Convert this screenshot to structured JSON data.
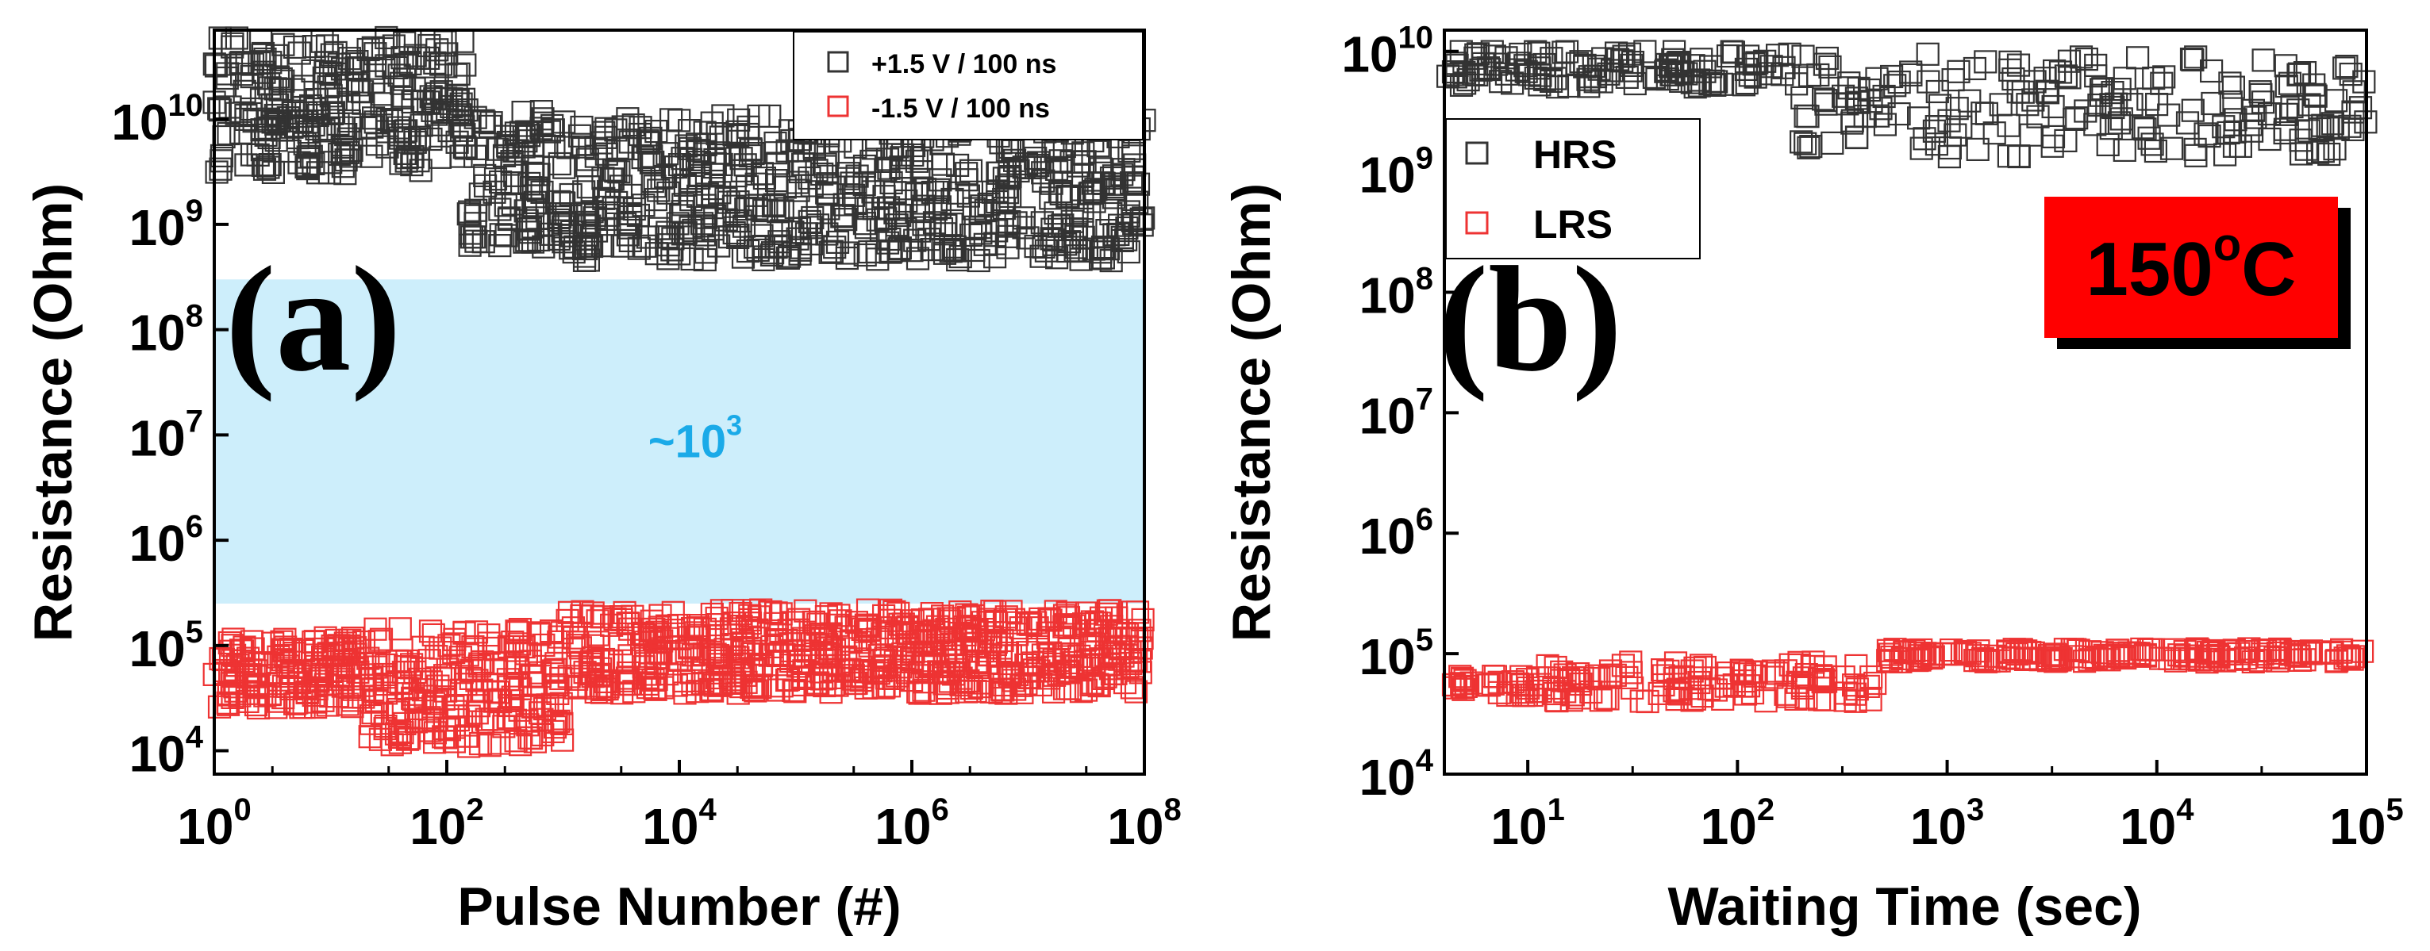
{
  "chart_data": [
    {
      "panel": "a",
      "type": "scatter",
      "panel_label": "(a)",
      "xlabel": "Pulse Number (#)",
      "ylabel": "Resistance (Ohm)",
      "xscale": "log",
      "yscale": "log",
      "xlim": [
        1,
        100000000
      ],
      "ylim": [
        6000,
        70000000000
      ],
      "xticks": [
        {
          "value": 1,
          "base": "10",
          "exp": "0"
        },
        {
          "value": 100,
          "base": "10",
          "exp": "2"
        },
        {
          "value": 10000,
          "base": "10",
          "exp": "4"
        },
        {
          "value": 1000000,
          "base": "10",
          "exp": "6"
        },
        {
          "value": 100000000,
          "base": "10",
          "exp": "8"
        }
      ],
      "yticks": [
        {
          "value": 10000,
          "base": "10",
          "exp": "4"
        },
        {
          "value": 100000,
          "base": "10",
          "exp": "5"
        },
        {
          "value": 1000000,
          "base": "10",
          "exp": "6"
        },
        {
          "value": 10000000,
          "base": "10",
          "exp": "7"
        },
        {
          "value": 100000000,
          "base": "10",
          "exp": "8"
        },
        {
          "value": 1000000000,
          "base": "10",
          "exp": "9"
        },
        {
          "value": 10000000000,
          "base": "10",
          "exp": "10"
        }
      ],
      "band": {
        "y_low": 250000,
        "y_high": 300000000,
        "color": "#cdeefb",
        "label_base": "~10",
        "label_exp": "3",
        "label_color": "#1aaae8"
      },
      "legend_position": "top-right",
      "series": [
        {
          "name": "+1.5 V / 100 ns",
          "color": "#333333",
          "x_range": [
            1,
            100000000
          ],
          "segments": [
            {
              "x": [
                1,
                150
              ],
              "y": [
                3000000000,
                60000000000
              ]
            },
            {
              "x": [
                150,
                1000
              ],
              "y": [
                600000000,
                12000000000
              ]
            },
            {
              "x": [
                1000,
                100000000
              ],
              "y": [
                450000000,
                11000000000
              ]
            }
          ]
        },
        {
          "name": "-1.5 V / 100 ns",
          "color": "#ee3333",
          "x_range": [
            1,
            100000000
          ],
          "segments": [
            {
              "x": [
                1,
                20
              ],
              "y": [
                25000,
                120000
              ]
            },
            {
              "x": [
                20,
                1000
              ],
              "y": [
                11000,
                150000
              ]
            },
            {
              "x": [
                1000,
                100000000
              ],
              "y": [
                35000,
                220000
              ]
            }
          ]
        }
      ]
    },
    {
      "panel": "b",
      "type": "scatter",
      "panel_label": "(b)",
      "xlabel": "Waiting Time (sec)",
      "ylabel": "Resistance (Ohm)",
      "xscale": "log",
      "yscale": "log",
      "xlim": [
        4,
        100000
      ],
      "ylim": [
        10000,
        15000000000
      ],
      "xticks": [
        {
          "value": 10,
          "base": "10",
          "exp": "1"
        },
        {
          "value": 100,
          "base": "10",
          "exp": "2"
        },
        {
          "value": 1000,
          "base": "10",
          "exp": "3"
        },
        {
          "value": 10000,
          "base": "10",
          "exp": "4"
        },
        {
          "value": 100000,
          "base": "10",
          "exp": "5"
        }
      ],
      "yticks": [
        {
          "value": 10000,
          "base": "10",
          "exp": "4"
        },
        {
          "value": 100000,
          "base": "10",
          "exp": "5"
        },
        {
          "value": 1000000,
          "base": "10",
          "exp": "6"
        },
        {
          "value": 10000000,
          "base": "10",
          "exp": "7"
        },
        {
          "value": 100000000,
          "base": "10",
          "exp": "8"
        },
        {
          "value": 1000000000,
          "base": "10",
          "exp": "9"
        },
        {
          "value": 10000000000,
          "base": "10",
          "exp": "10"
        }
      ],
      "annotation": {
        "text_base": "150",
        "text_exp": "o",
        "text_tail": "C",
        "fill": "#ff0000"
      },
      "legend_position": "upper-left",
      "series": [
        {
          "name": "HRS",
          "color": "#333333",
          "x_range": [
            4,
            100000
          ],
          "segments": [
            {
              "x": [
                4,
                200
              ],
              "y": [
                5000000000,
                10000000000
              ]
            },
            {
              "x": [
                200,
                1000
              ],
              "y": [
                1500000000,
                10000000000
              ]
            },
            {
              "x": [
                1000,
                100000
              ],
              "y": [
                1300000000,
                9000000000
              ]
            }
          ]
        },
        {
          "name": "LRS",
          "color": "#ee3333",
          "x_range": [
            4,
            100000
          ],
          "segments": [
            {
              "x": [
                4,
                12
              ],
              "y": [
                45000,
                65000
              ]
            },
            {
              "x": [
                12,
                500
              ],
              "y": [
                40000,
                85000
              ]
            },
            {
              "x": [
                500,
                100000
              ],
              "y": [
                85000,
                110000
              ]
            }
          ]
        }
      ]
    }
  ]
}
